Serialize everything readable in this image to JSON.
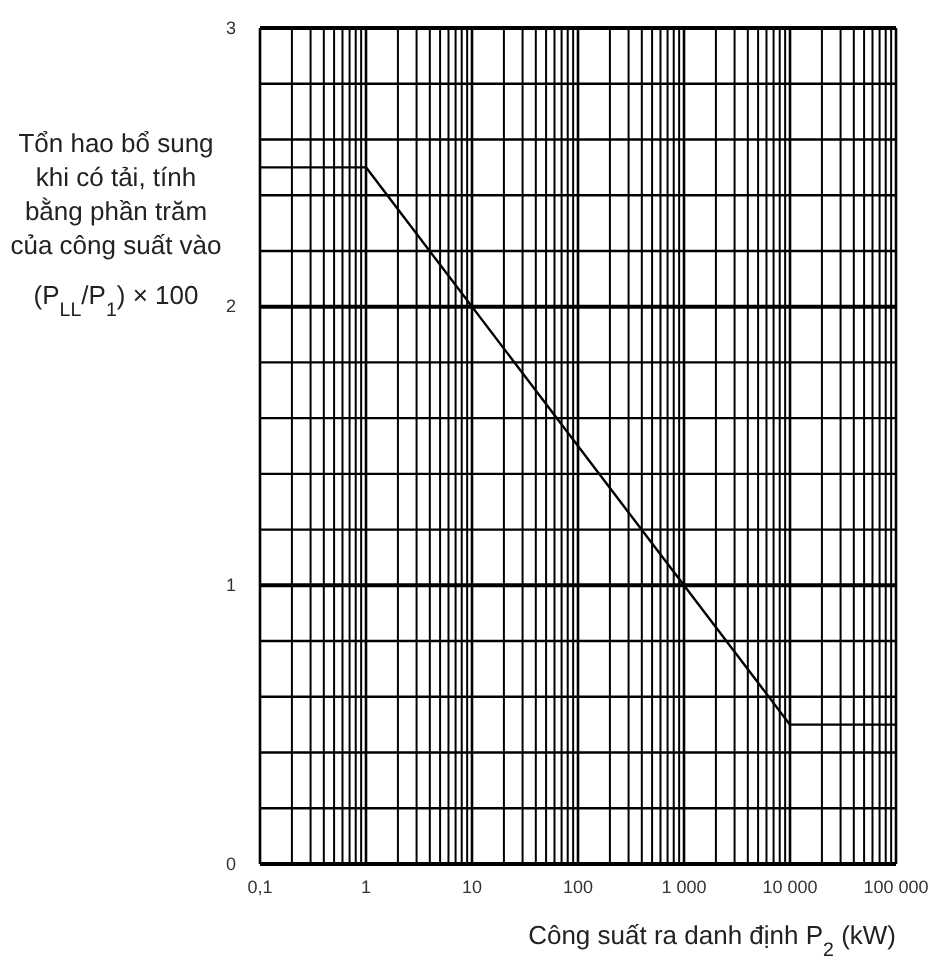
{
  "chart_data": {
    "type": "line",
    "xlabel": "Công suất ra danh định P$_{2}$ (kW)",
    "ylabel": "Tổn hao bổ sung khi có tải, tính bằng phần trăm của công suất vào (P$_{LL}$/P$_{1}$) × 100",
    "x": [
      0.1,
      1,
      10000,
      100000
    ],
    "series": [
      {
        "color": "#000000",
        "values": [
          2.5,
          2.5,
          0.5,
          0.5
        ]
      }
    ],
    "log": "x",
    "grid": true,
    "marker": "none",
    "line_style": "solid",
    "xlim": [
      0.1,
      100000
    ],
    "ylim": [
      0,
      3
    ],
    "xticks": [
      {
        "value": 0.1,
        "label": "0,1"
      },
      {
        "value": 0.2,
        "label": null
      },
      {
        "value": 0.3,
        "label": null
      },
      {
        "value": 0.4,
        "label": null
      },
      {
        "value": 0.5,
        "label": null
      },
      {
        "value": 0.6,
        "label": null
      },
      {
        "value": 0.7,
        "label": null
      },
      {
        "value": 0.8,
        "label": null
      },
      {
        "value": 0.9,
        "label": null
      },
      {
        "value": 1,
        "label": "1"
      },
      {
        "value": 2,
        "label": null
      },
      {
        "value": 3,
        "label": null
      },
      {
        "value": 4,
        "label": null
      },
      {
        "value": 5,
        "label": null
      },
      {
        "value": 6,
        "label": null
      },
      {
        "value": 7,
        "label": null
      },
      {
        "value": 8,
        "label": null
      },
      {
        "value": 9,
        "label": null
      },
      {
        "value": 10,
        "label": "10"
      },
      {
        "value": 20,
        "label": null
      },
      {
        "value": 30,
        "label": null
      },
      {
        "value": 40,
        "label": null
      },
      {
        "value": 50,
        "label": null
      },
      {
        "value": 60,
        "label": null
      },
      {
        "value": 70,
        "label": null
      },
      {
        "value": 80,
        "label": null
      },
      {
        "value": 90,
        "label": null
      },
      {
        "value": 100,
        "label": "100"
      },
      {
        "value": 200,
        "label": null
      },
      {
        "value": 300,
        "label": null
      },
      {
        "value": 400,
        "label": null
      },
      {
        "value": 500,
        "label": null
      },
      {
        "value": 600,
        "label": null
      },
      {
        "value": 700,
        "label": null
      },
      {
        "value": 800,
        "label": null
      },
      {
        "value": 900,
        "label": null
      },
      {
        "value": 1000,
        "label": "1 000"
      },
      {
        "value": 2000,
        "label": null
      },
      {
        "value": 3000,
        "label": null
      },
      {
        "value": 4000,
        "label": null
      },
      {
        "value": 5000,
        "label": null
      },
      {
        "value": 6000,
        "label": null
      },
      {
        "value": 7000,
        "label": null
      },
      {
        "value": 8000,
        "label": null
      },
      {
        "value": 9000,
        "label": null
      },
      {
        "value": 10000,
        "label": "10 000"
      },
      {
        "value": 20000,
        "label": null
      },
      {
        "value": 30000,
        "label": null
      },
      {
        "value": 40000,
        "label": null
      },
      {
        "value": 50000,
        "label": null
      },
      {
        "value": 60000,
        "label": null
      },
      {
        "value": 70000,
        "label": null
      },
      {
        "value": 80000,
        "label": null
      },
      {
        "value": 90000,
        "label": null
      },
      {
        "value": 100000,
        "label": "100 000"
      }
    ],
    "yticks": [
      0,
      {
        "value": 0.2,
        "label": null
      },
      {
        "value": 0.4,
        "label": null
      },
      {
        "value": 0.6,
        "label": null
      },
      {
        "value": 0.8,
        "label": null
      },
      1,
      {
        "value": 1.2,
        "label": null
      },
      {
        "value": 1.4,
        "label": null
      },
      {
        "value": 1.6,
        "label": null
      },
      {
        "value": 1.8,
        "label": null
      },
      2,
      {
        "value": 2.2,
        "label": null
      },
      {
        "value": 2.4,
        "label": null
      },
      {
        "value": 2.6,
        "label": null
      },
      {
        "value": 2.8,
        "label": null
      },
      3
    ]
  }
}
